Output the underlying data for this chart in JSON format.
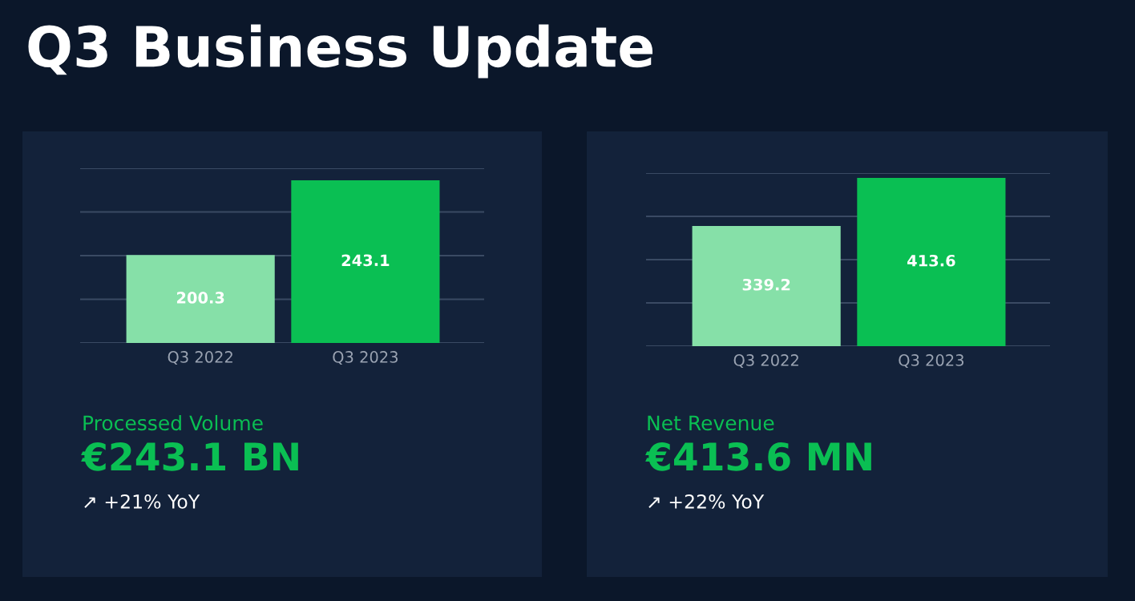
{
  "chart_data": [
    {
      "type": "bar",
      "title": "Q3 Business Update",
      "categories": [
        "Q3 2022",
        "Q3 2023"
      ],
      "values": [
        200.3,
        243.1
      ],
      "colors": [
        "#86e0a8",
        "#0abf53"
      ],
      "data_labels": true,
      "grid": "y",
      "tick_labels": "x",
      "ylim": [
        150,
        250
      ],
      "yticks": [
        {
          "value": 150,
          "label": null
        },
        {
          "value": 175,
          "label": null
        },
        {
          "value": 200,
          "label": null
        },
        {
          "value": 225,
          "label": null
        },
        {
          "value": 250,
          "label": null
        }
      ],
      "annotations": [
        "Processed Volume",
        "€243.1 BN",
        "↗ +21% YoY"
      ]
    },
    {
      "type": "bar",
      "categories": [
        "Q3 2022",
        "Q3 2023"
      ],
      "values": [
        339.2,
        413.6
      ],
      "colors": [
        "#86e0a8",
        "#0abf53"
      ],
      "data_labels": true,
      "grid": "y",
      "tick_labels": "x",
      "ylim": [
        153,
        421
      ],
      "yticks": [
        {
          "value": 153,
          "label": null
        },
        {
          "value": 220,
          "label": null
        },
        {
          "value": 287,
          "label": null
        },
        {
          "value": 354,
          "label": null
        },
        {
          "value": 421,
          "label": null
        }
      ],
      "annotations": [
        "Net Revenue",
        "€413.6 MN",
        "↗ +22% YoY"
      ]
    }
  ]
}
